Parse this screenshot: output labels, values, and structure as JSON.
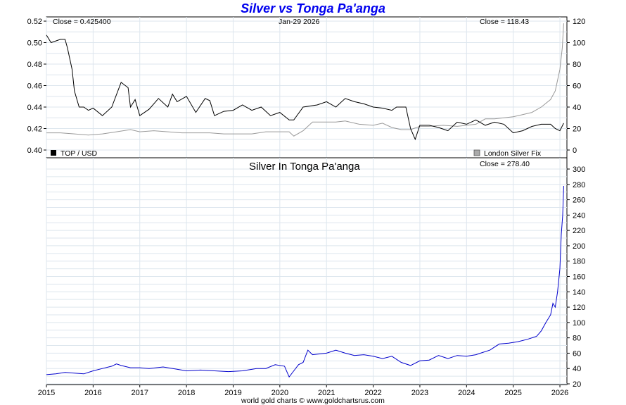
{
  "chart_data": [
    {
      "type": "line",
      "title": "Silver vs Tonga Pa'anga",
      "date_label": "Jan-29  2026",
      "left_close": "Close = 0.425400",
      "right_close": "Close = 118.43",
      "left_axis": {
        "ticks": [
          "0.40",
          "0.42",
          "0.44",
          "0.46",
          "0.48",
          "0.50",
          "0.52"
        ],
        "ylim": [
          0.4,
          0.52
        ]
      },
      "right_axis": {
        "ticks": [
          "0",
          "20",
          "40",
          "60",
          "80",
          "100",
          "120"
        ],
        "ylim": [
          0,
          120
        ]
      },
      "series": [
        {
          "name": "TOP / USD",
          "axis": "left",
          "color": "#000000",
          "x": [
            2015.0,
            2015.1,
            2015.3,
            2015.4,
            2015.45,
            2015.5,
            2015.55,
            2015.6,
            2015.7,
            2015.8,
            2015.9,
            2016.0,
            2016.2,
            2016.4,
            2016.6,
            2016.75,
            2016.8,
            2016.9,
            2017.0,
            2017.2,
            2017.4,
            2017.6,
            2017.7,
            2017.8,
            2018.0,
            2018.2,
            2018.4,
            2018.5,
            2018.6,
            2018.8,
            2019.0,
            2019.2,
            2019.4,
            2019.6,
            2019.8,
            2020.0,
            2020.2,
            2020.3,
            2020.5,
            2020.8,
            2021.0,
            2021.2,
            2021.4,
            2021.6,
            2021.8,
            2022.0,
            2022.2,
            2022.4,
            2022.5,
            2022.7,
            2022.8,
            2022.9,
            2023.0,
            2023.2,
            2023.4,
            2023.6,
            2023.8,
            2024.0,
            2024.2,
            2024.4,
            2024.6,
            2024.8,
            2025.0,
            2025.2,
            2025.4,
            2025.6,
            2025.8,
            2025.9,
            2026.0,
            2026.08
          ],
          "values": [
            0.507,
            0.5,
            0.503,
            0.503,
            0.495,
            0.485,
            0.475,
            0.455,
            0.44,
            0.44,
            0.437,
            0.439,
            0.432,
            0.44,
            0.463,
            0.458,
            0.44,
            0.447,
            0.432,
            0.438,
            0.448,
            0.44,
            0.452,
            0.445,
            0.45,
            0.435,
            0.448,
            0.446,
            0.432,
            0.436,
            0.437,
            0.442,
            0.437,
            0.44,
            0.432,
            0.435,
            0.428,
            0.428,
            0.44,
            0.442,
            0.445,
            0.44,
            0.448,
            0.445,
            0.443,
            0.44,
            0.439,
            0.437,
            0.44,
            0.44,
            0.42,
            0.41,
            0.423,
            0.423,
            0.421,
            0.418,
            0.426,
            0.424,
            0.428,
            0.423,
            0.426,
            0.424,
            0.416,
            0.418,
            0.422,
            0.424,
            0.424,
            0.42,
            0.418,
            0.425
          ]
        },
        {
          "name": "London Silver Fix",
          "axis": "right",
          "color": "#999999",
          "x": [
            2015.0,
            2015.3,
            2015.6,
            2015.9,
            2016.2,
            2016.5,
            2016.8,
            2017.0,
            2017.3,
            2017.6,
            2017.9,
            2018.2,
            2018.5,
            2018.8,
            2019.1,
            2019.4,
            2019.7,
            2020.0,
            2020.2,
            2020.3,
            2020.5,
            2020.7,
            2021.0,
            2021.2,
            2021.4,
            2021.7,
            2022.0,
            2022.2,
            2022.4,
            2022.6,
            2022.8,
            2023.0,
            2023.2,
            2023.5,
            2023.8,
            2024.0,
            2024.2,
            2024.4,
            2024.6,
            2024.8,
            2025.0,
            2025.2,
            2025.4,
            2025.6,
            2025.8,
            2025.9,
            2026.0,
            2026.05,
            2026.08
          ],
          "values": [
            16,
            16,
            15,
            14,
            15,
            17,
            19,
            17,
            18,
            17,
            16,
            16,
            16,
            15,
            15,
            15,
            17,
            17,
            17,
            13,
            18,
            26,
            26,
            26,
            27,
            24,
            23,
            25,
            21,
            19,
            19,
            22,
            22,
            23,
            22,
            23,
            24,
            29,
            29,
            30,
            31,
            33,
            35,
            40,
            47,
            55,
            75,
            95,
            118
          ]
        }
      ],
      "legend": [
        "TOP / USD",
        "London Silver Fix"
      ]
    },
    {
      "type": "line",
      "title": "Silver In Tonga Pa'anga",
      "close_label": "Close = 278.40",
      "axis": {
        "ticks": [
          "20",
          "40",
          "60",
          "80",
          "100",
          "120",
          "140",
          "160",
          "180",
          "200",
          "220",
          "240",
          "260",
          "280",
          "300"
        ],
        "ylim": [
          20,
          300
        ]
      },
      "xlim": [
        2015.0,
        2026.15
      ],
      "x_ticks": [
        "2015",
        "2016",
        "2017",
        "2018",
        "2019",
        "2020",
        "2021",
        "2022",
        "2023",
        "2024",
        "2025",
        "2026"
      ],
      "series": [
        {
          "name": "Silver In Tonga Pa'anga",
          "color": "#0000cc",
          "x": [
            2015.0,
            2015.2,
            2015.4,
            2015.6,
            2015.8,
            2016.0,
            2016.2,
            2016.4,
            2016.5,
            2016.6,
            2016.8,
            2017.0,
            2017.2,
            2017.5,
            2017.8,
            2018.0,
            2018.3,
            2018.6,
            2018.9,
            2019.2,
            2019.5,
            2019.7,
            2019.9,
            2020.1,
            2020.2,
            2020.3,
            2020.4,
            2020.5,
            2020.6,
            2020.7,
            2021.0,
            2021.2,
            2021.4,
            2021.6,
            2021.8,
            2022.0,
            2022.2,
            2022.4,
            2022.6,
            2022.8,
            2023.0,
            2023.2,
            2023.4,
            2023.6,
            2023.8,
            2024.0,
            2024.2,
            2024.3,
            2024.5,
            2024.7,
            2024.9,
            2025.1,
            2025.3,
            2025.5,
            2025.6,
            2025.7,
            2025.8,
            2025.85,
            2025.9,
            2025.95,
            2026.0,
            2026.03,
            2026.06,
            2026.08
          ],
          "values": [
            32,
            33,
            35,
            34,
            33,
            37,
            40,
            43,
            46,
            44,
            41,
            41,
            40,
            42,
            39,
            37,
            38,
            37,
            36,
            37,
            40,
            40,
            45,
            43,
            29,
            37,
            45,
            48,
            64,
            58,
            60,
            64,
            60,
            57,
            58,
            56,
            53,
            56,
            48,
            44,
            50,
            51,
            57,
            53,
            57,
            56,
            58,
            60,
            64,
            72,
            73,
            75,
            78,
            82,
            89,
            100,
            110,
            125,
            120,
            140,
            170,
            215,
            240,
            278
          ]
        }
      ]
    }
  ],
  "footer": "world gold charts © www.goldchartsrus.com"
}
